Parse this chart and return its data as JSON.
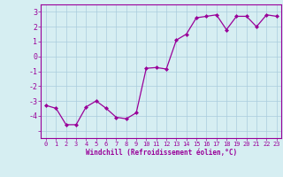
{
  "x": [
    0,
    1,
    2,
    3,
    4,
    5,
    6,
    7,
    8,
    9,
    10,
    11,
    12,
    13,
    14,
    15,
    16,
    17,
    18,
    19,
    20,
    21,
    22,
    23
  ],
  "y": [
    -3.3,
    -3.5,
    -4.6,
    -4.6,
    -3.4,
    -3.0,
    -3.5,
    -4.1,
    -4.2,
    -3.8,
    -0.8,
    -0.75,
    -0.85,
    1.1,
    1.5,
    2.6,
    2.7,
    2.8,
    1.8,
    2.7,
    2.7,
    2.0,
    2.8,
    2.7
  ],
  "line_color": "#990099",
  "marker": "D",
  "marker_size": 2,
  "bg_color": "#d6eef2",
  "grid_color": "#aaccdd",
  "xlabel": "Windchill (Refroidissement éolien,°C)",
  "xlabel_color": "#990099",
  "tick_color": "#990099",
  "spine_color": "#990099",
  "ylim": [
    -5.5,
    3.5
  ],
  "xlim": [
    -0.5,
    23.5
  ],
  "yticks": [
    -5,
    -4,
    -3,
    -2,
    -1,
    0,
    1,
    2,
    3
  ],
  "xticks": [
    0,
    1,
    2,
    3,
    4,
    5,
    6,
    7,
    8,
    9,
    10,
    11,
    12,
    13,
    14,
    15,
    16,
    17,
    18,
    19,
    20,
    21,
    22,
    23
  ],
  "ytick_labels": [
    "",
    "-4",
    "-3",
    "-2",
    "-1",
    "0",
    "1",
    "2",
    "3"
  ],
  "xtick_labels": [
    "0",
    "1",
    "2",
    "3",
    "4",
    "5",
    "6",
    "7",
    "8",
    "9",
    "10",
    "11",
    "12",
    "13",
    "14",
    "15",
    "16",
    "17",
    "18",
    "19",
    "20",
    "21",
    "22",
    "23"
  ]
}
